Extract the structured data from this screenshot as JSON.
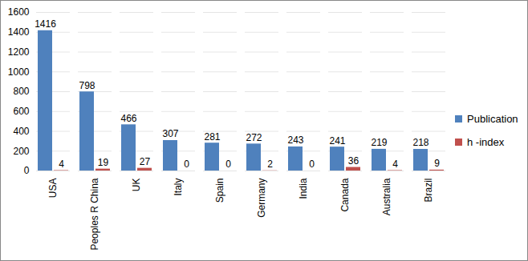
{
  "chart_data": {
    "type": "bar",
    "categories": [
      "USA",
      "Peoples R China",
      "UK",
      "Italy",
      "Spain",
      "Germany",
      "India",
      "Canada",
      "Australia",
      "Brazil"
    ],
    "series": [
      {
        "name": "Publication",
        "color": "#4f81bd",
        "values": [
          1416,
          798,
          466,
          307,
          281,
          272,
          243,
          241,
          219,
          218
        ]
      },
      {
        "name": "h -index",
        "color": "#c0504d",
        "values": [
          4,
          19,
          27,
          0,
          0,
          2,
          0,
          36,
          4,
          9
        ]
      }
    ],
    "ylim": [
      0,
      1600
    ],
    "yticks": [
      0,
      200,
      400,
      600,
      800,
      1000,
      1200,
      1400,
      1600
    ],
    "grid": true,
    "legend": "right",
    "data_labels": true
  }
}
